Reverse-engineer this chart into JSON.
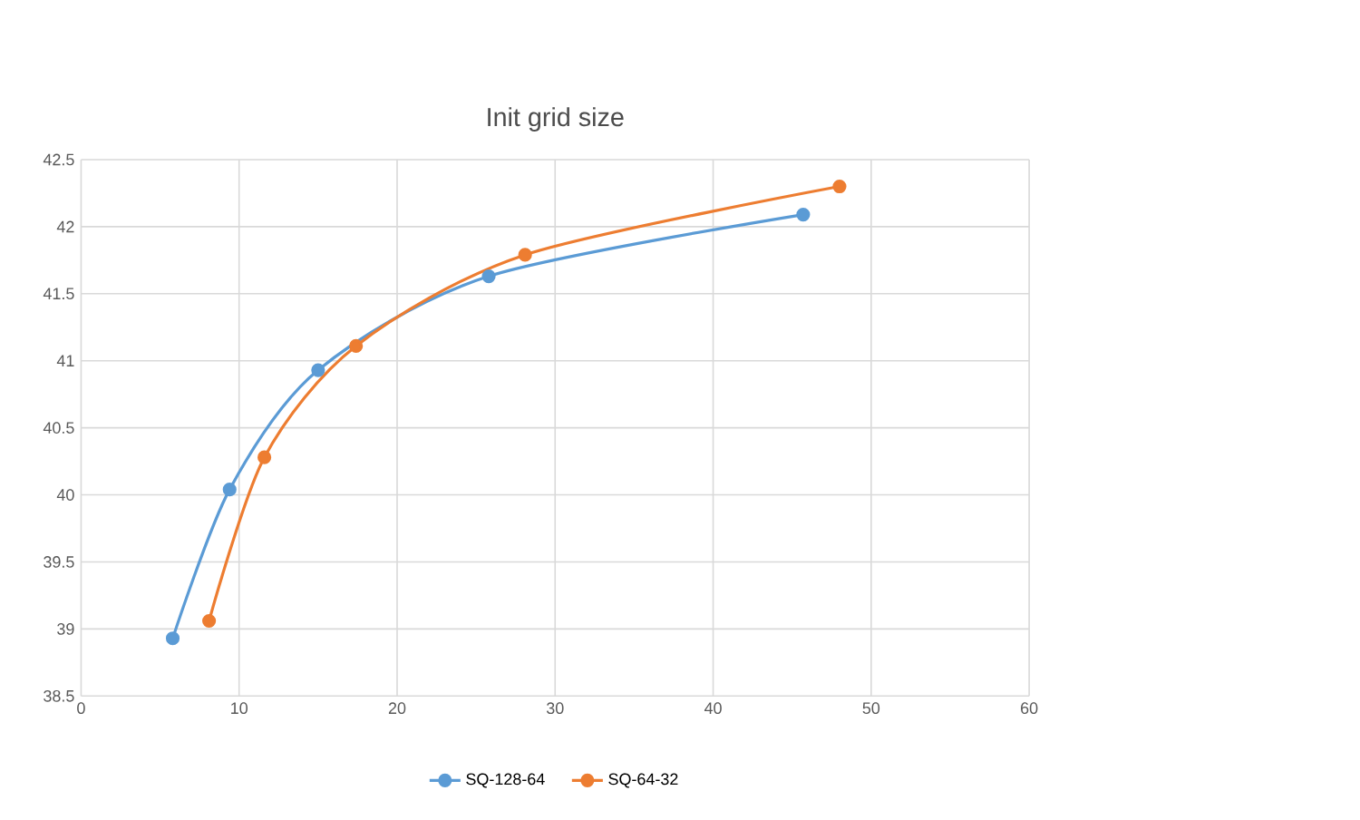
{
  "chart_data": {
    "type": "line",
    "title": "Init grid size",
    "xlim": [
      0,
      60
    ],
    "xticks": [
      0,
      10,
      20,
      30,
      40,
      50,
      60
    ],
    "ylim": [
      38.5,
      42.5
    ],
    "yticks": [
      38.5,
      39,
      39.5,
      40,
      40.5,
      41,
      41.5,
      42,
      42.5
    ],
    "grid": true,
    "legend": "bottom",
    "marker": "circle",
    "line_style": "solid",
    "series": [
      {
        "name": "SQ-128-64",
        "color": "#5b9bd5",
        "x": [
          5.8,
          9.4,
          15.0,
          25.8,
          45.7
        ],
        "values": [
          38.93,
          40.04,
          40.93,
          41.63,
          42.09
        ]
      },
      {
        "name": "SQ-64-32",
        "color": "#ed7d31",
        "x": [
          8.1,
          11.6,
          17.4,
          28.1,
          48.0
        ],
        "values": [
          39.06,
          40.28,
          41.11,
          41.79,
          42.3
        ]
      }
    ]
  }
}
